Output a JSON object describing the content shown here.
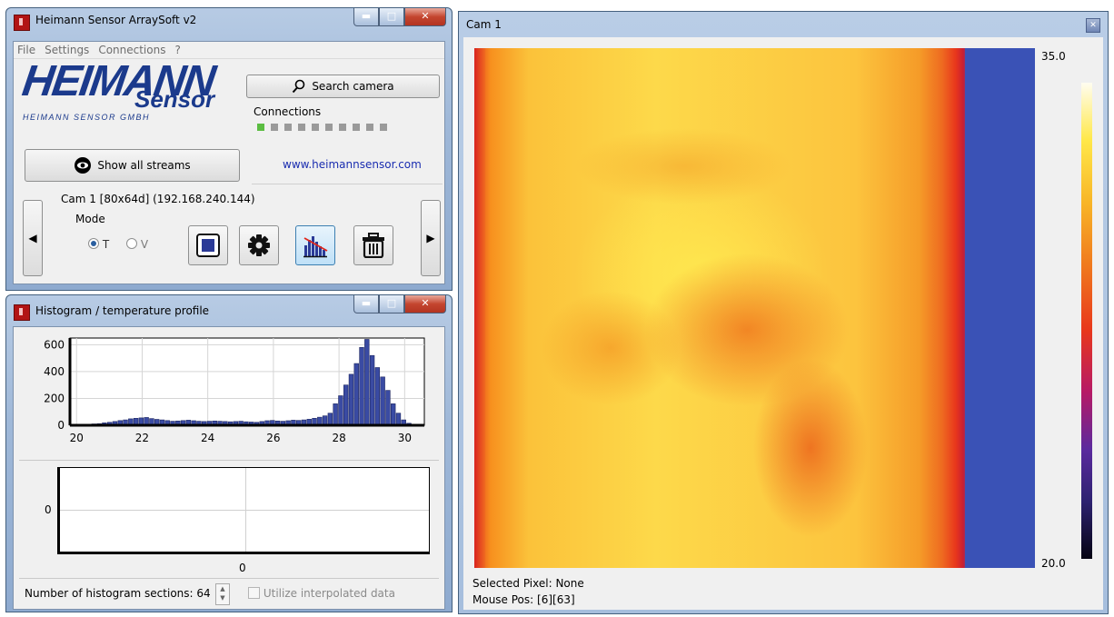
{
  "main_window": {
    "title": "Heimann Sensor ArraySoft v2",
    "menu": [
      "File",
      "Settings",
      "Connections",
      "?"
    ],
    "logo_big": "HEIMANN",
    "logo_sensor": "Sensor",
    "logo_sub": "HEIMANN SENSOR GMBH",
    "search_label": "Search camera",
    "connections_label": "Connections",
    "connections": [
      true,
      false,
      false,
      false,
      false,
      false,
      false,
      false,
      false,
      false
    ],
    "show_streams_label": "Show all streams",
    "website": "www.heimannsensor.com",
    "cam_info": "Cam 1 [80x64d]  (192.168.240.144)",
    "mode_label": "Mode",
    "mode_t": "T",
    "mode_v": "V",
    "mode_selected": "T"
  },
  "histogram_window": {
    "title": "Histogram / temperature profile",
    "sections_label": "Number of histogram sections: 64",
    "interpolate_label": "Utilize interpolated data",
    "profile_y_tick": "0",
    "profile_x_tick": "0"
  },
  "chart_data": [
    {
      "type": "bar",
      "title": "",
      "xlabel": "",
      "ylabel": "",
      "xlim": [
        19.8,
        30.6
      ],
      "ylim": [
        0,
        650
      ],
      "x_ticks": [
        20,
        22,
        24,
        26,
        28,
        30
      ],
      "y_ticks": [
        0,
        200,
        400,
        600
      ],
      "grid": true,
      "bar_color": "#3a4ba3",
      "x": [
        20.05,
        20.21,
        20.37,
        20.53,
        20.69,
        20.85,
        21.01,
        21.17,
        21.33,
        21.49,
        21.65,
        21.81,
        21.97,
        22.13,
        22.29,
        22.45,
        22.61,
        22.77,
        22.93,
        23.09,
        23.25,
        23.41,
        23.57,
        23.73,
        23.89,
        24.05,
        24.21,
        24.37,
        24.53,
        24.69,
        24.85,
        25.01,
        25.17,
        25.33,
        25.49,
        25.65,
        25.81,
        25.97,
        26.13,
        26.29,
        26.45,
        26.61,
        26.77,
        26.93,
        27.09,
        27.25,
        27.41,
        27.57,
        27.73,
        27.89,
        28.05,
        28.21,
        28.37,
        28.53,
        28.69,
        28.85,
        29.01,
        29.17,
        29.33,
        29.49,
        29.65,
        29.81,
        29.97,
        30.13
      ],
      "values": [
        5,
        5,
        8,
        10,
        12,
        18,
        22,
        28,
        35,
        40,
        48,
        52,
        55,
        58,
        50,
        44,
        40,
        35,
        30,
        32,
        35,
        38,
        34,
        30,
        28,
        30,
        32,
        30,
        28,
        26,
        28,
        30,
        26,
        24,
        22,
        28,
        34,
        36,
        32,
        30,
        34,
        38,
        36,
        40,
        45,
        52,
        60,
        70,
        90,
        160,
        220,
        300,
        380,
        460,
        580,
        640,
        520,
        430,
        360,
        260,
        160,
        90,
        40,
        15
      ]
    },
    {
      "type": "line",
      "title": "",
      "xlabel": "",
      "ylabel": "",
      "x_ticks": [
        0
      ],
      "y_ticks": [
        0
      ],
      "series": []
    }
  ],
  "cam_window": {
    "title": "Cam 1",
    "scale_max": "35.0",
    "scale_min": "20.0",
    "selected_pixel": "Selected Pixel: None",
    "mouse_pos": "Mouse Pos: [6][63]"
  },
  "colors": {
    "hist_bar": "#3a4ba3",
    "thermal_hot": "#ffe84a",
    "thermal_mid": "#f7901e",
    "thermal_cold": "#3b55b8"
  }
}
